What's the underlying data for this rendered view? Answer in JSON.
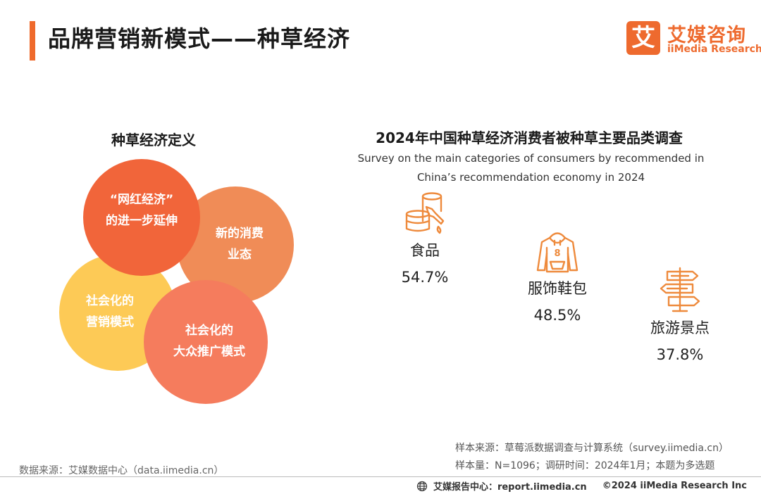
{
  "header": {
    "title": "品牌营销新模式——种草经济"
  },
  "logo": {
    "mark": "艾",
    "cn": "艾媒咨询",
    "en": "iiMedia Research"
  },
  "definition": {
    "title": "种草经济定义",
    "circles": [
      {
        "lines": [
          "“网红经济”",
          "的进一步延伸"
        ]
      },
      {
        "lines": [
          "新的消费",
          "业态"
        ]
      },
      {
        "lines": [
          "社会化的",
          "营销模式"
        ]
      },
      {
        "lines": [
          "社会化的",
          "大众推广模式"
        ]
      }
    ]
  },
  "survey": {
    "title": "2024年中国种草经济消费者被种草主要品类调查",
    "subtitle_line1": "Survey on the main categories of consumers by recommended in",
    "subtitle_line2": "China’s recommendation economy in 2024",
    "categories": [
      {
        "label": "食品",
        "value": "54.7%",
        "icon": "food-icon"
      },
      {
        "label": "服饰鞋包",
        "value": "48.5%",
        "icon": "hoodie-icon"
      },
      {
        "label": "旅游景点",
        "value": "37.8%",
        "icon": "signpost-icon"
      }
    ]
  },
  "sources": {
    "data_source": "数据来源：艾媒数据中心（data.iimedia.cn）",
    "sample_source": "样本来源：草莓派数据调查与计算系统（survey.iimedia.cn）",
    "sample_size": "样本量：N=1096；调研时间：2024年1月；本题为多选题"
  },
  "footer": {
    "report": "艾媒报告中心：report.iimedia.cn",
    "copyright": "©2024  iiMedia Research  Inc"
  },
  "colors": {
    "accent": "#ef6a2c",
    "icon": "#ee8a3c"
  }
}
